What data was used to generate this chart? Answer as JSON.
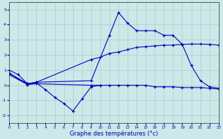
{
  "title": "Graphe des températures (°c)",
  "bg_color": "#cce8e8",
  "grid_color": "#aacccc",
  "line_color": "#0000bb",
  "spine_color": "#444444",
  "xlim": [
    0,
    23
  ],
  "ylim": [
    -2.5,
    5.5
  ],
  "xticks": [
    0,
    1,
    2,
    3,
    4,
    5,
    6,
    7,
    8,
    9,
    10,
    11,
    12,
    13,
    14,
    15,
    16,
    17,
    18,
    19,
    20,
    21,
    22,
    23
  ],
  "yticks": [
    -2,
    -1,
    0,
    1,
    2,
    3,
    4,
    5
  ],
  "series": [
    {
      "x": [
        0,
        1,
        2,
        3,
        9,
        11,
        12,
        13,
        14,
        15,
        16,
        17,
        18,
        19,
        20,
        21,
        22,
        23
      ],
      "y": [
        1.0,
        0.7,
        0.1,
        0.2,
        0.3,
        3.3,
        4.8,
        4.1,
        3.6,
        3.6,
        3.6,
        3.3,
        3.3,
        2.7,
        1.3,
        0.3,
        -0.1,
        -0.2
      ]
    },
    {
      "x": [
        0,
        2,
        3,
        4,
        5,
        6,
        7,
        8,
        9,
        10
      ],
      "y": [
        0.7,
        0.05,
        0.15,
        -0.3,
        -0.8,
        -1.2,
        -1.7,
        -0.9,
        -0.1,
        0.0
      ]
    },
    {
      "x": [
        0,
        2,
        3,
        9,
        10,
        11,
        12,
        13,
        14,
        15,
        16,
        17,
        18,
        19,
        20,
        21,
        22,
        23
      ],
      "y": [
        0.8,
        0.05,
        0.1,
        0.0,
        0.0,
        0.0,
        0.0,
        0.0,
        0.0,
        0.0,
        -0.1,
        -0.1,
        -0.1,
        -0.15,
        -0.15,
        -0.15,
        -0.2,
        -0.25
      ]
    },
    {
      "x": [
        0,
        2,
        3,
        9,
        10,
        11,
        12,
        13,
        14,
        15,
        16,
        17,
        18,
        19,
        20,
        21,
        22,
        23
      ],
      "y": [
        0.8,
        0.1,
        0.2,
        1.7,
        1.85,
        2.1,
        2.2,
        2.35,
        2.5,
        2.55,
        2.6,
        2.65,
        2.65,
        2.7,
        2.72,
        2.72,
        2.7,
        2.65
      ]
    }
  ]
}
